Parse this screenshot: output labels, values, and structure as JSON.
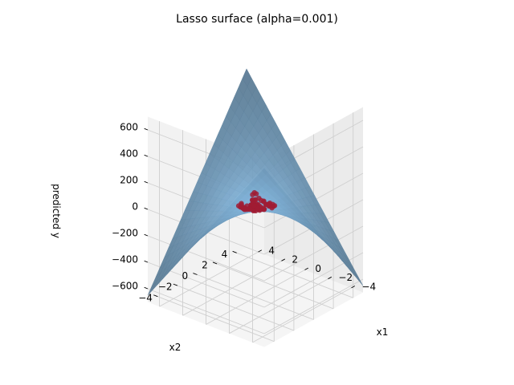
{
  "chart_data": {
    "type": "surface3d",
    "title": "Lasso surface (alpha=0.001)",
    "xlabel": "x1",
    "ylabel": "x2",
    "zlabel": "predicted y",
    "x_ticks": [
      -4,
      -2,
      0,
      2,
      4
    ],
    "x_tick_labels": [
      "−4",
      "−2",
      "0",
      "2",
      "4"
    ],
    "y_ticks": [
      -4,
      -2,
      0,
      2,
      4
    ],
    "y_tick_labels": [
      "−4",
      "−2",
      "0",
      "2",
      "4"
    ],
    "z_ticks": [
      -600,
      -400,
      -200,
      0,
      200,
      400,
      600
    ],
    "z_tick_labels": [
      "−600",
      "−400",
      "−200",
      "0",
      "200",
      "400",
      "600"
    ],
    "xlim": [
      -5,
      5
    ],
    "ylim": [
      -5,
      5
    ],
    "zlim": [
      -700,
      700
    ],
    "grid": true,
    "surface": {
      "description": "saddle-shaped fitted surface, predicted y ≈ k·x1·x2",
      "corner_values": {
        "x1_-5_x2_-5": 650,
        "x1_5_x2_5": 650,
        "x1_-5_x2_5": -650,
        "x1_5_x2_-5": -650
      },
      "color": "#86b9e0"
    },
    "points": {
      "description": "training samples clustered near the origin",
      "x1_range": [
        -1,
        1
      ],
      "x2_range": [
        -1,
        1
      ],
      "color": "#a01c34"
    },
    "view": {
      "elevation": 22,
      "azimuth": -150
    }
  }
}
